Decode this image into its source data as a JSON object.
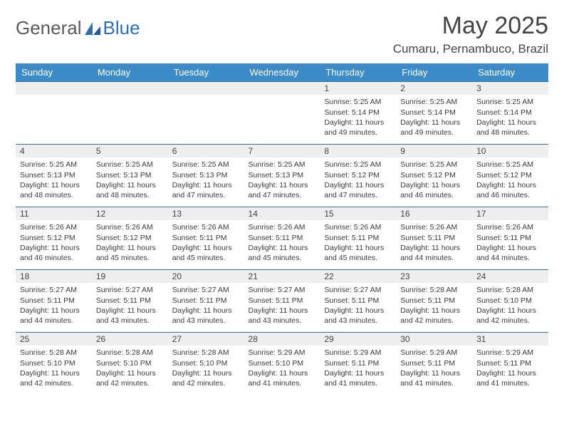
{
  "brand": {
    "word1": "General",
    "word2": "Blue"
  },
  "title": "May 2025",
  "location": "Cumaru, Pernambuco, Brazil",
  "dayHeaders": [
    "Sunday",
    "Monday",
    "Tuesday",
    "Wednesday",
    "Thursday",
    "Friday",
    "Saturday"
  ],
  "colors": {
    "header_bg": "#3b8bc9",
    "header_text": "#ffffff",
    "daynum_bg": "#eeeeee",
    "row_border": "#3b6fa0",
    "text": "#3a3a3a",
    "logo_gray": "#5a5a5a",
    "logo_blue": "#2f6fb3"
  },
  "weeks": [
    [
      null,
      null,
      null,
      null,
      {
        "n": "1",
        "sr": "5:25 AM",
        "ss": "5:14 PM",
        "dl": "11 hours and 49 minutes."
      },
      {
        "n": "2",
        "sr": "5:25 AM",
        "ss": "5:14 PM",
        "dl": "11 hours and 49 minutes."
      },
      {
        "n": "3",
        "sr": "5:25 AM",
        "ss": "5:14 PM",
        "dl": "11 hours and 48 minutes."
      }
    ],
    [
      {
        "n": "4",
        "sr": "5:25 AM",
        "ss": "5:13 PM",
        "dl": "11 hours and 48 minutes."
      },
      {
        "n": "5",
        "sr": "5:25 AM",
        "ss": "5:13 PM",
        "dl": "11 hours and 48 minutes."
      },
      {
        "n": "6",
        "sr": "5:25 AM",
        "ss": "5:13 PM",
        "dl": "11 hours and 47 minutes."
      },
      {
        "n": "7",
        "sr": "5:25 AM",
        "ss": "5:13 PM",
        "dl": "11 hours and 47 minutes."
      },
      {
        "n": "8",
        "sr": "5:25 AM",
        "ss": "5:12 PM",
        "dl": "11 hours and 47 minutes."
      },
      {
        "n": "9",
        "sr": "5:25 AM",
        "ss": "5:12 PM",
        "dl": "11 hours and 46 minutes."
      },
      {
        "n": "10",
        "sr": "5:25 AM",
        "ss": "5:12 PM",
        "dl": "11 hours and 46 minutes."
      }
    ],
    [
      {
        "n": "11",
        "sr": "5:26 AM",
        "ss": "5:12 PM",
        "dl": "11 hours and 46 minutes."
      },
      {
        "n": "12",
        "sr": "5:26 AM",
        "ss": "5:12 PM",
        "dl": "11 hours and 45 minutes."
      },
      {
        "n": "13",
        "sr": "5:26 AM",
        "ss": "5:11 PM",
        "dl": "11 hours and 45 minutes."
      },
      {
        "n": "14",
        "sr": "5:26 AM",
        "ss": "5:11 PM",
        "dl": "11 hours and 45 minutes."
      },
      {
        "n": "15",
        "sr": "5:26 AM",
        "ss": "5:11 PM",
        "dl": "11 hours and 45 minutes."
      },
      {
        "n": "16",
        "sr": "5:26 AM",
        "ss": "5:11 PM",
        "dl": "11 hours and 44 minutes."
      },
      {
        "n": "17",
        "sr": "5:26 AM",
        "ss": "5:11 PM",
        "dl": "11 hours and 44 minutes."
      }
    ],
    [
      {
        "n": "18",
        "sr": "5:27 AM",
        "ss": "5:11 PM",
        "dl": "11 hours and 44 minutes."
      },
      {
        "n": "19",
        "sr": "5:27 AM",
        "ss": "5:11 PM",
        "dl": "11 hours and 43 minutes."
      },
      {
        "n": "20",
        "sr": "5:27 AM",
        "ss": "5:11 PM",
        "dl": "11 hours and 43 minutes."
      },
      {
        "n": "21",
        "sr": "5:27 AM",
        "ss": "5:11 PM",
        "dl": "11 hours and 43 minutes."
      },
      {
        "n": "22",
        "sr": "5:27 AM",
        "ss": "5:11 PM",
        "dl": "11 hours and 43 minutes."
      },
      {
        "n": "23",
        "sr": "5:28 AM",
        "ss": "5:11 PM",
        "dl": "11 hours and 42 minutes."
      },
      {
        "n": "24",
        "sr": "5:28 AM",
        "ss": "5:10 PM",
        "dl": "11 hours and 42 minutes."
      }
    ],
    [
      {
        "n": "25",
        "sr": "5:28 AM",
        "ss": "5:10 PM",
        "dl": "11 hours and 42 minutes."
      },
      {
        "n": "26",
        "sr": "5:28 AM",
        "ss": "5:10 PM",
        "dl": "11 hours and 42 minutes."
      },
      {
        "n": "27",
        "sr": "5:28 AM",
        "ss": "5:10 PM",
        "dl": "11 hours and 42 minutes."
      },
      {
        "n": "28",
        "sr": "5:29 AM",
        "ss": "5:10 PM",
        "dl": "11 hours and 41 minutes."
      },
      {
        "n": "29",
        "sr": "5:29 AM",
        "ss": "5:11 PM",
        "dl": "11 hours and 41 minutes."
      },
      {
        "n": "30",
        "sr": "5:29 AM",
        "ss": "5:11 PM",
        "dl": "11 hours and 41 minutes."
      },
      {
        "n": "31",
        "sr": "5:29 AM",
        "ss": "5:11 PM",
        "dl": "11 hours and 41 minutes."
      }
    ]
  ],
  "labels": {
    "sunrise": "Sunrise: ",
    "sunset": "Sunset: ",
    "daylight": "Daylight: "
  }
}
